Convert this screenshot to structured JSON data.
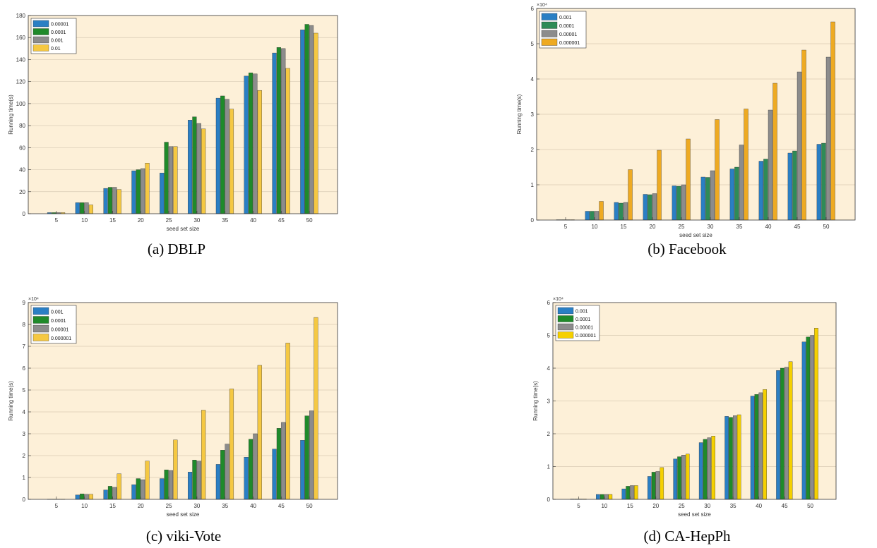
{
  "chart_data": [
    {
      "type": "bar",
      "caption": "(a) DBLP",
      "xlabel": "seed set size",
      "ylabel": "Running time(s)",
      "exponent_label": "",
      "categories": [
        "5",
        "10",
        "15",
        "20",
        "25",
        "30",
        "35",
        "40",
        "45",
        "50"
      ],
      "ylim": [
        0,
        180
      ],
      "yticks": [
        0,
        20,
        40,
        60,
        80,
        100,
        120,
        140,
        160,
        180
      ],
      "ytick_labels": [
        "0",
        "20",
        "40",
        "60",
        "80",
        "100",
        "120",
        "140",
        "160",
        "180"
      ],
      "legend_position": "top-left",
      "series": [
        {
          "name": "0.00001",
          "color": "#2a7fc4",
          "values": [
            1,
            10,
            23,
            39,
            37,
            85,
            105,
            125,
            146,
            167
          ]
        },
        {
          "name": "0.0001",
          "color": "#1f8a2a",
          "values": [
            1,
            10,
            24,
            40,
            65,
            88,
            107,
            128,
            151,
            172
          ]
        },
        {
          "name": "0.001",
          "color": "#8c8c8c",
          "values": [
            1,
            10,
            24,
            41,
            61,
            82,
            104,
            127,
            150,
            171
          ]
        },
        {
          "name": "0.01",
          "color": "#f5c842",
          "values": [
            1,
            8,
            22,
            46,
            61,
            77,
            95,
            112,
            132,
            164
          ]
        }
      ]
    },
    {
      "type": "bar",
      "caption": "(b) Facebook",
      "xlabel": "seed set size",
      "ylabel": "Running time(s)",
      "exponent_label": "×10⁴",
      "categories": [
        "5",
        "10",
        "15",
        "20",
        "25",
        "30",
        "35",
        "40",
        "45",
        "50"
      ],
      "ylim": [
        0,
        6
      ],
      "yticks": [
        0,
        1,
        2,
        3,
        4,
        5,
        6
      ],
      "ytick_labels": [
        "0",
        "1",
        "2",
        "3",
        "4",
        "5",
        "6"
      ],
      "legend_position": "top-left",
      "series": [
        {
          "name": "0.001",
          "color": "#2a7fc4",
          "values": [
            0.01,
            0.25,
            0.5,
            0.73,
            0.97,
            1.22,
            1.45,
            1.67,
            1.9,
            2.15
          ]
        },
        {
          "name": "0.0001",
          "color": "#2e8b57",
          "values": [
            0.01,
            0.25,
            0.48,
            0.72,
            0.96,
            1.21,
            1.5,
            1.73,
            1.96,
            2.18
          ]
        },
        {
          "name": "0.00001",
          "color": "#8c8c8c",
          "values": [
            0.01,
            0.25,
            0.5,
            0.75,
            1.0,
            1.4,
            2.13,
            3.12,
            4.2,
            4.62
          ]
        },
        {
          "name": "0.000001",
          "color": "#eeaa22",
          "values": [
            0.01,
            0.53,
            1.43,
            1.98,
            2.3,
            2.85,
            3.15,
            3.88,
            4.82,
            5.62
          ]
        }
      ]
    },
    {
      "type": "bar",
      "caption": "(c) viki-Vote",
      "xlabel": "seed set size",
      "ylabel": "Running time(s)",
      "exponent_label": "×10⁴",
      "categories": [
        "5",
        "10",
        "15",
        "20",
        "25",
        "30",
        "35",
        "40",
        "45",
        "50"
      ],
      "ylim": [
        0,
        9
      ],
      "yticks": [
        0,
        1,
        2,
        3,
        4,
        5,
        6,
        7,
        8,
        9
      ],
      "ytick_labels": [
        "0",
        "1",
        "2",
        "3",
        "4",
        "5",
        "6",
        "7",
        "8",
        "9"
      ],
      "legend_position": "top-left",
      "series": [
        {
          "name": "0.001",
          "color": "#2a7fc4",
          "values": [
            0.01,
            0.2,
            0.43,
            0.67,
            0.95,
            1.25,
            1.6,
            1.93,
            2.3,
            2.7
          ]
        },
        {
          "name": "0.0001",
          "color": "#1f8a2a",
          "values": [
            0.01,
            0.25,
            0.6,
            0.95,
            1.35,
            1.8,
            2.25,
            2.75,
            3.25,
            3.82
          ]
        },
        {
          "name": "0.00001",
          "color": "#8c8c8c",
          "values": [
            0.01,
            0.23,
            0.55,
            0.9,
            1.32,
            1.75,
            2.53,
            3.0,
            3.52,
            4.05
          ]
        },
        {
          "name": "0.000001",
          "color": "#f5c842",
          "values": [
            0.01,
            0.23,
            1.17,
            1.75,
            2.72,
            4.08,
            5.05,
            6.13,
            7.15,
            8.32
          ]
        }
      ]
    },
    {
      "type": "bar",
      "caption": "(d) CA-HepPh",
      "xlabel": "seed set size",
      "ylabel": "Running time(s)",
      "exponent_label": "×10⁴",
      "categories": [
        "5",
        "10",
        "15",
        "20",
        "25",
        "30",
        "35",
        "40",
        "45",
        "50"
      ],
      "ylim": [
        0,
        6
      ],
      "yticks": [
        0,
        1,
        2,
        3,
        4,
        5,
        6
      ],
      "ytick_labels": [
        "0",
        "1",
        "2",
        "3",
        "4",
        "5",
        "6"
      ],
      "legend_position": "top-left",
      "series": [
        {
          "name": "0.001",
          "color": "#2a7fc4",
          "values": [
            0.01,
            0.15,
            0.32,
            0.7,
            1.23,
            1.73,
            2.53,
            3.15,
            3.93,
            4.8
          ]
        },
        {
          "name": "0.0001",
          "color": "#1f8a2a",
          "values": [
            0.01,
            0.15,
            0.4,
            0.83,
            1.3,
            1.83,
            2.5,
            3.2,
            4.0,
            4.95
          ]
        },
        {
          "name": "0.00001",
          "color": "#8c8c8c",
          "values": [
            0.01,
            0.15,
            0.42,
            0.85,
            1.35,
            1.88,
            2.55,
            3.25,
            4.03,
            5.0
          ]
        },
        {
          "name": "0.000001",
          "color": "#f5d000",
          "values": [
            0.01,
            0.15,
            0.42,
            0.97,
            1.38,
            1.93,
            2.58,
            3.35,
            4.2,
            5.22
          ]
        }
      ]
    }
  ]
}
